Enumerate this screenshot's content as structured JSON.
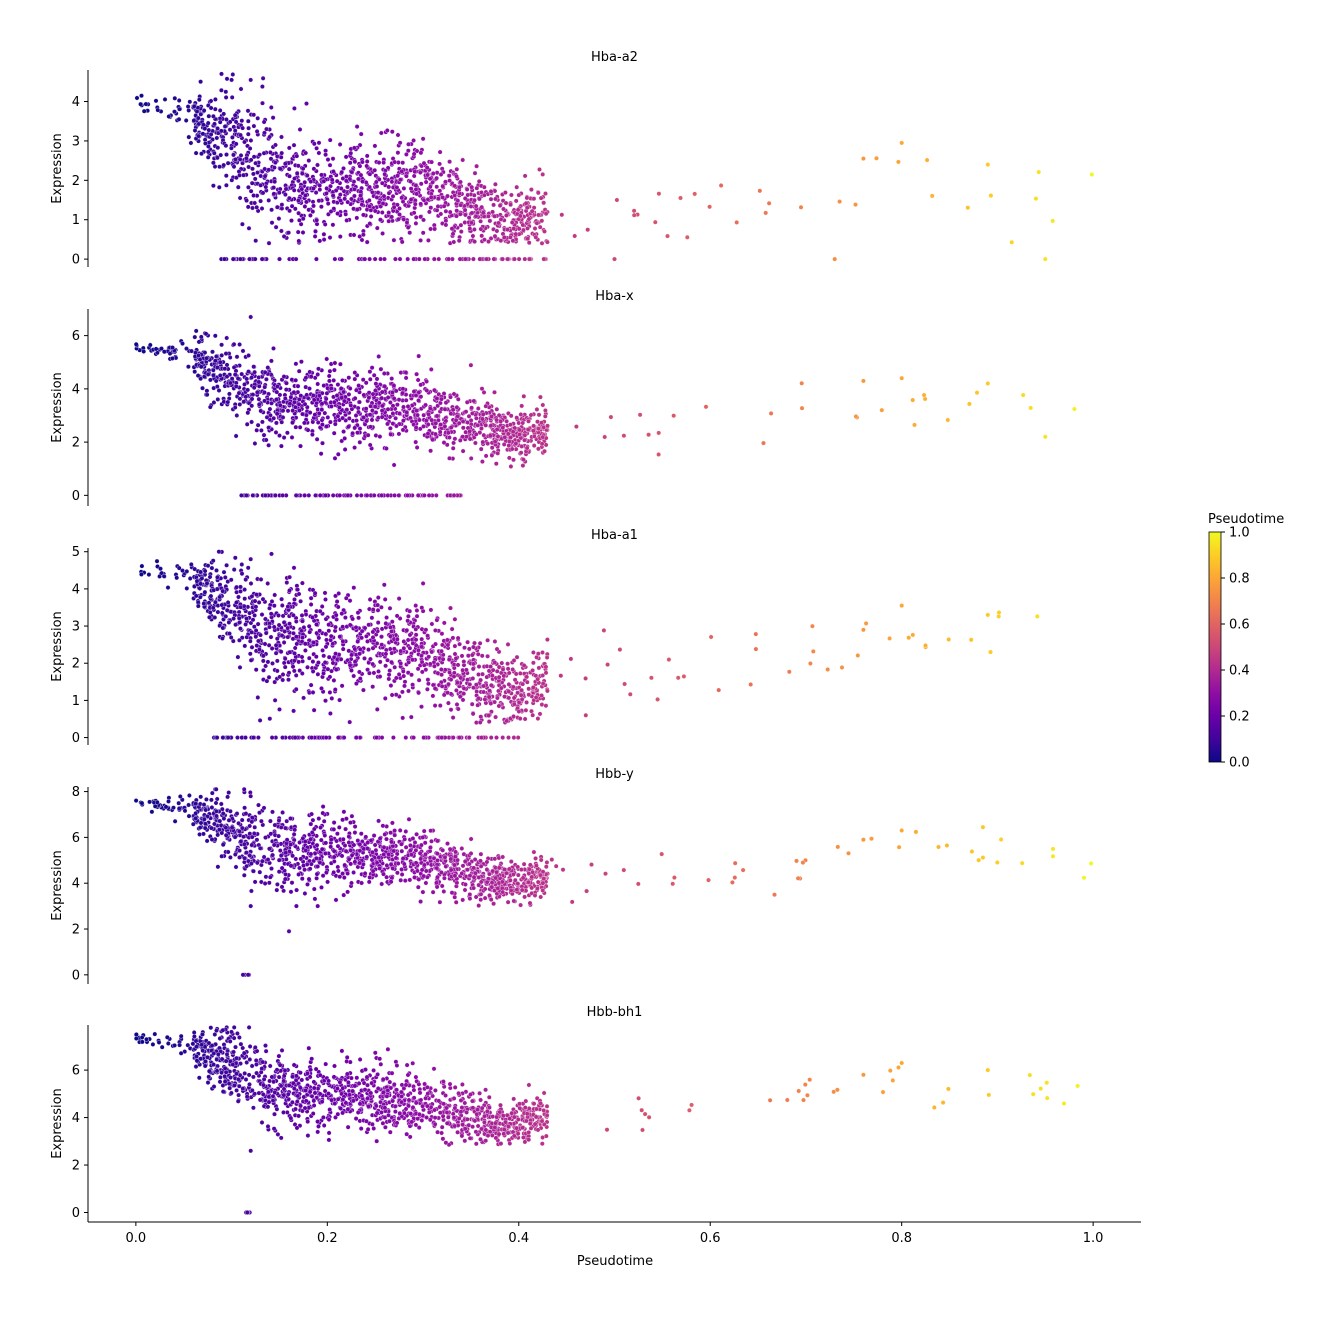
{
  "figure": {
    "xlabel": "Pseudotime",
    "ylabel": "Expression",
    "colorbar": {
      "label": "Pseudotime",
      "colormap": "plasma",
      "range": [
        0.0,
        1.0
      ],
      "ticks": [
        "0.0",
        "0.2",
        "0.4",
        "0.6",
        "0.8",
        "1.0"
      ]
    },
    "x_ticks": [
      "0.0",
      "0.2",
      "0.4",
      "0.6",
      "0.8",
      "1.0"
    ]
  },
  "chart_data": [
    {
      "type": "scatter",
      "title": "Hba-a2",
      "ylabel": "Expression",
      "xlim": [
        -0.05,
        1.05
      ],
      "ylim": [
        -0.2,
        4.8
      ],
      "yticks": [
        0,
        1,
        2,
        3,
        4
      ],
      "trend": {
        "knots_x": [
          0.0,
          0.05,
          0.1,
          0.15,
          0.2,
          0.3,
          0.35,
          0.4,
          0.45,
          0.6,
          0.8,
          1.0
        ],
        "center_y": [
          3.95,
          3.75,
          2.9,
          1.9,
          1.8,
          1.8,
          1.2,
          1.0,
          1.2,
          1.2,
          2.0,
          1.8
        ],
        "spread": [
          0.1,
          0.2,
          0.7,
          0.75,
          0.7,
          0.6,
          0.5,
          0.45,
          0.45,
          0.5,
          0.5,
          0.5
        ],
        "floor": 0.4,
        "zero_band": [
          0.08,
          0.43
        ]
      },
      "highlighted_points": [
        [
          0.1,
          4.55
        ],
        [
          0.12,
          4.55
        ],
        [
          0.8,
          2.95
        ],
        [
          0.76,
          2.55
        ],
        [
          0.89,
          2.4
        ],
        [
          0.95,
          0.0
        ],
        [
          0.73,
          0.0
        ],
        [
          0.5,
          0.0
        ]
      ]
    },
    {
      "type": "scatter",
      "title": "Hba-x",
      "ylabel": "Expression",
      "xlim": [
        -0.05,
        1.05
      ],
      "ylim": [
        -0.4,
        7.0
      ],
      "yticks": [
        0,
        2,
        4,
        6
      ],
      "trend": {
        "knots_x": [
          0.0,
          0.05,
          0.1,
          0.15,
          0.2,
          0.3,
          0.35,
          0.4,
          0.45,
          0.6,
          0.8,
          1.0
        ],
        "center_y": [
          5.5,
          5.4,
          4.4,
          3.4,
          3.5,
          3.2,
          2.6,
          2.2,
          2.6,
          2.7,
          3.4,
          3.0
        ],
        "spread": [
          0.08,
          0.2,
          0.8,
          0.8,
          0.75,
          0.7,
          0.6,
          0.45,
          0.5,
          0.5,
          0.6,
          0.5
        ],
        "floor": 1.0,
        "zero_band": [
          0.11,
          0.34
        ]
      },
      "highlighted_points": [
        [
          0.12,
          6.7
        ],
        [
          0.8,
          4.4
        ],
        [
          0.76,
          4.3
        ],
        [
          0.89,
          4.2
        ],
        [
          0.95,
          2.2
        ]
      ]
    },
    {
      "type": "scatter",
      "title": "Hba-a1",
      "ylabel": "Expression",
      "xlim": [
        -0.05,
        1.05
      ],
      "ylim": [
        -0.2,
        5.1
      ],
      "yticks": [
        0,
        1,
        2,
        3,
        4,
        5
      ],
      "trend": {
        "knots_x": [
          0.0,
          0.05,
          0.1,
          0.15,
          0.2,
          0.3,
          0.35,
          0.4,
          0.45,
          0.6,
          0.8,
          1.0
        ],
        "center_y": [
          4.55,
          4.4,
          3.5,
          2.6,
          2.5,
          2.4,
          1.5,
          1.2,
          1.8,
          2.0,
          2.8,
          2.3
        ],
        "spread": [
          0.08,
          0.2,
          0.7,
          0.75,
          0.7,
          0.6,
          0.55,
          0.45,
          0.5,
          0.5,
          0.55,
          0.5
        ],
        "floor": 0.4,
        "zero_band": [
          0.08,
          0.4
        ]
      },
      "highlighted_points": [
        [
          0.12,
          4.8
        ],
        [
          0.8,
          3.55
        ],
        [
          0.89,
          3.3
        ],
        [
          0.76,
          2.9
        ],
        [
          0.47,
          0.6
        ]
      ]
    },
    {
      "type": "scatter",
      "title": "Hbb-y",
      "ylabel": "Expression",
      "xlim": [
        -0.05,
        1.05
      ],
      "ylim": [
        -0.4,
        8.2
      ],
      "yticks": [
        0,
        2,
        4,
        6,
        8
      ],
      "trend": {
        "knots_x": [
          0.0,
          0.05,
          0.1,
          0.15,
          0.2,
          0.3,
          0.35,
          0.4,
          0.45,
          0.6,
          0.8,
          1.0
        ],
        "center_y": [
          7.5,
          7.2,
          6.3,
          5.3,
          5.5,
          5.0,
          4.3,
          4.0,
          4.6,
          4.5,
          5.5,
          5.0
        ],
        "spread": [
          0.1,
          0.25,
          0.8,
          0.8,
          0.75,
          0.65,
          0.55,
          0.45,
          0.5,
          0.5,
          0.5,
          0.5
        ],
        "floor": 3.0,
        "zero_band": [
          0.11,
          0.12
        ]
      },
      "highlighted_points": [
        [
          0.12,
          7.8
        ],
        [
          0.8,
          6.3
        ],
        [
          0.76,
          5.9
        ],
        [
          0.16,
          1.9
        ],
        [
          0.12,
          3.0
        ],
        [
          0.19,
          3.0
        ]
      ]
    },
    {
      "type": "scatter",
      "title": "Hbb-bh1",
      "ylabel": "Expression",
      "xlim": [
        -0.05,
        1.05
      ],
      "ylim": [
        -0.4,
        7.9
      ],
      "yticks": [
        0,
        2,
        4,
        6
      ],
      "trend": {
        "knots_x": [
          0.0,
          0.05,
          0.1,
          0.15,
          0.2,
          0.3,
          0.35,
          0.4,
          0.45,
          0.6,
          0.8,
          1.0
        ],
        "center_y": [
          7.4,
          7.1,
          6.2,
          5.0,
          5.0,
          4.6,
          4.0,
          3.8,
          4.3,
          4.5,
          5.3,
          5.0
        ],
        "spread": [
          0.08,
          0.25,
          0.8,
          0.8,
          0.75,
          0.65,
          0.55,
          0.45,
          0.5,
          0.5,
          0.5,
          0.5
        ],
        "floor": 2.8,
        "zero_band": [
          0.115,
          0.12
        ]
      },
      "highlighted_points": [
        [
          0.8,
          6.3
        ],
        [
          0.76,
          5.8
        ],
        [
          0.89,
          6.0
        ],
        [
          0.12,
          2.6
        ]
      ]
    }
  ]
}
